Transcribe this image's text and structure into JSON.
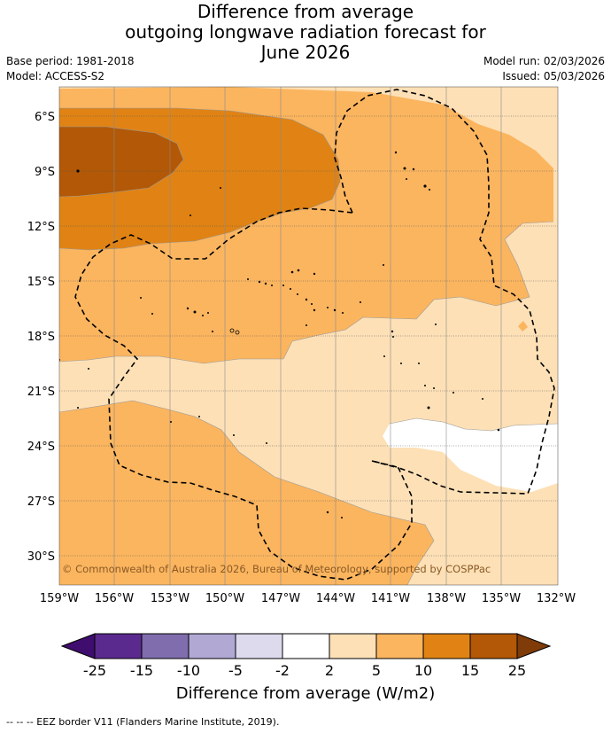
{
  "title": {
    "line1": "Difference from average",
    "line2": "outgoing longwave radiation forecast for",
    "line3": "June 2026"
  },
  "meta": {
    "base_period": "Base period: 1981-2018",
    "model": "Model: ACCESS-S2",
    "model_run": "Model run: 02/03/2026",
    "issued": "Issued: 05/03/2026"
  },
  "map": {
    "lat_labels": [
      "6°S",
      "9°S",
      "12°S",
      "15°S",
      "18°S",
      "21°S",
      "24°S",
      "27°S",
      "30°S"
    ],
    "lon_labels": [
      "159°W",
      "156°W",
      "153°W",
      "150°W",
      "147°W",
      "144°W",
      "141°W",
      "138°W",
      "135°W",
      "132°W"
    ],
    "copyright": "© Commonwealth of Australia 2026, Bureau of Meteorology, supported by COSPPac",
    "colors": {
      "c2_5": "#fde0b6",
      "c5_10": "#fbb55f",
      "c10_15": "#e08314",
      "c15_25": "#b25806"
    }
  },
  "legend": {
    "ticks": [
      "-25",
      "-15",
      "-10",
      "-5",
      "-2",
      "2",
      "5",
      "10",
      "15",
      "25"
    ],
    "label": "Difference from average (W/m2)",
    "colors": [
      "#3f0d6e",
      "#5a2a8e",
      "#7f6dad",
      "#b1a8d3",
      "#dcdaec",
      "#ffffff",
      "#fde0b6",
      "#fbb55f",
      "#e08314",
      "#b25806",
      "#7f3b08"
    ]
  },
  "footnote": "-- -- -- EEZ border V11 (Flanders Marine Institute, 2019)."
}
